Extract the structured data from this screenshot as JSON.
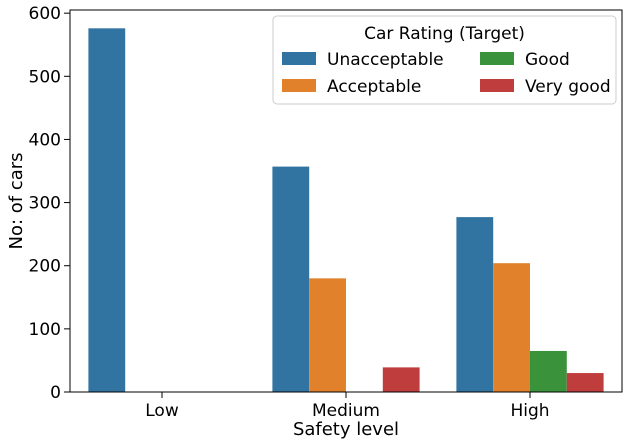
{
  "chart_data": {
    "type": "bar",
    "xlabel": "Safety level",
    "ylabel": "No: of cars",
    "ylim": [
      0,
      605
    ],
    "yticks": [
      0,
      100,
      200,
      300,
      400,
      500,
      600
    ],
    "categories": [
      "Low",
      "Medium",
      "High"
    ],
    "series": [
      {
        "name": "Unacceptable",
        "color": "#3274a1",
        "values": [
          576,
          357,
          277
        ]
      },
      {
        "name": "Acceptable",
        "color": "#e1812c",
        "values": [
          0,
          180,
          204
        ]
      },
      {
        "name": "Good",
        "color": "#3a923a",
        "values": [
          0,
          0,
          65
        ]
      },
      {
        "name": "Very good",
        "color": "#c03d3e",
        "values": [
          0,
          39,
          30
        ]
      }
    ],
    "legend": {
      "title": "Car Rating (Target)",
      "placement": "top-right",
      "columns": 2
    },
    "grid": false
  }
}
